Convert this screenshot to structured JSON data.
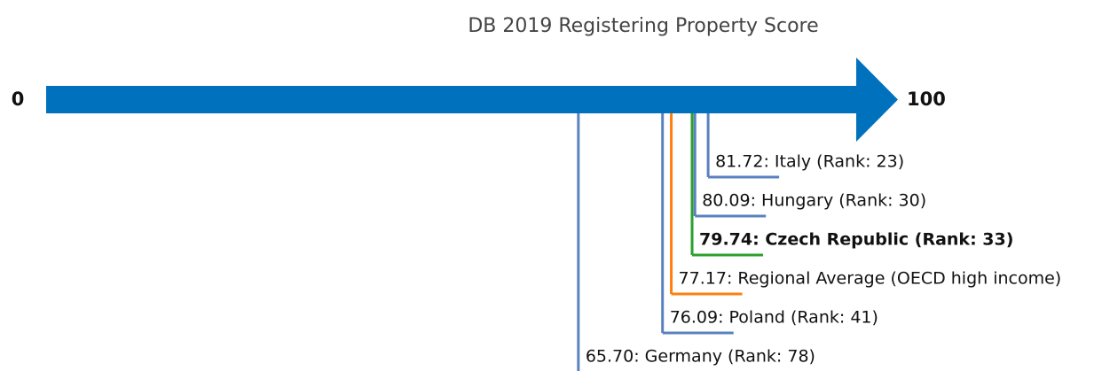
{
  "chart_data": {
    "type": "numberline",
    "title": "DB 2019 Registering Property Score",
    "xlim": [
      0,
      100
    ],
    "xticks": [
      0,
      100
    ],
    "arrow_color": "#0072bd",
    "categories": [
      "81.72: Italy (Rank: 23)",
      "80.09: Hungary (Rank: 30)",
      "79.74: Czech Republic (Rank: 33)",
      "77.17: Regional Average (OECD high income)",
      "76.09: Poland (Rank: 41)",
      "65.70: Germany (Rank: 78)"
    ],
    "values": [
      81.72,
      80.09,
      79.74,
      77.17,
      76.09,
      65.7
    ],
    "colors": [
      "#5a82c0",
      "#5a82c0",
      "#2ca02c",
      "#ff7f0e",
      "#5a82c0",
      "#5a82c0"
    ],
    "highlight": 2
  }
}
